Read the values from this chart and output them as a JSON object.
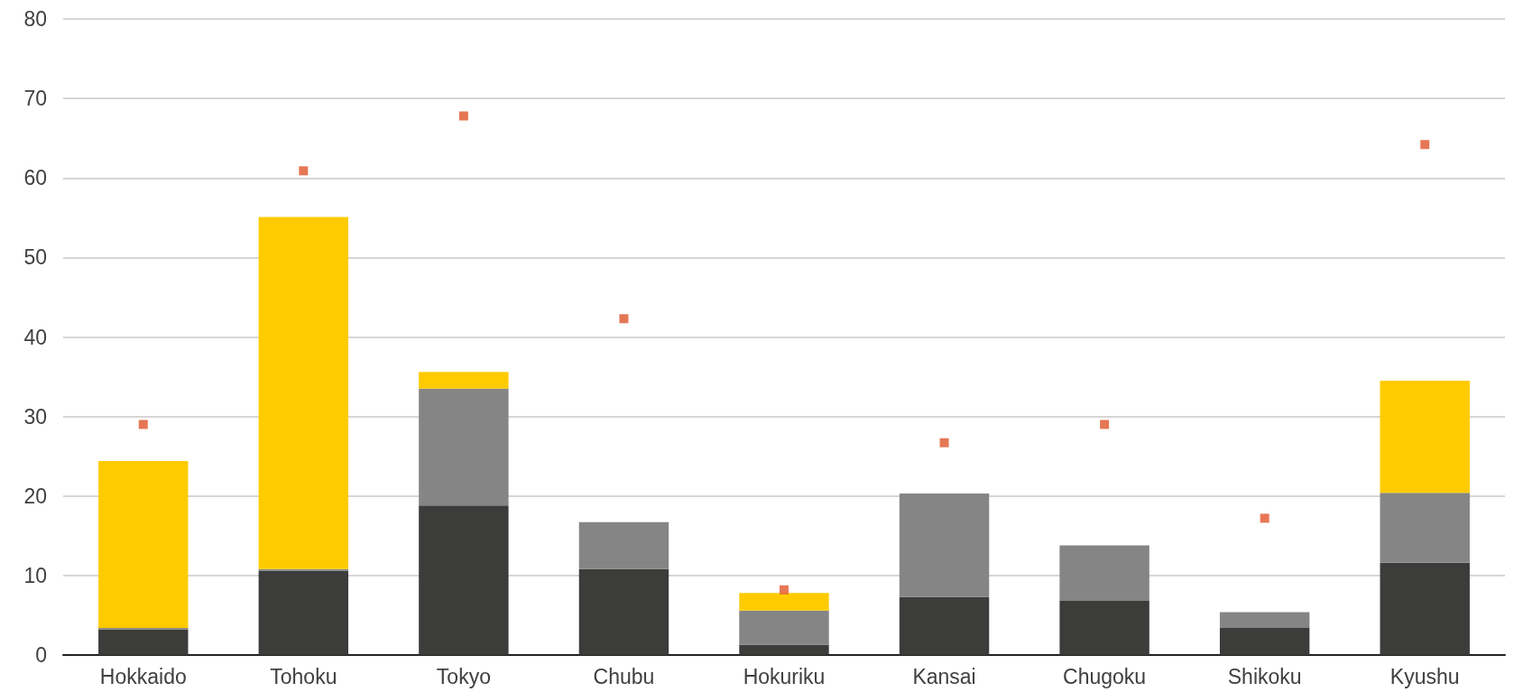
{
  "chart_data": {
    "type": "bar",
    "stacked": true,
    "categories": [
      "Hokkaido",
      "Tohoku",
      "Tokyo",
      "Chubu",
      "Hokuriku",
      "Kansai",
      "Chugoku",
      "Shikoku",
      "Kyushu"
    ],
    "series": [
      {
        "color": "#3c3c3a",
        "values": [
          3.2,
          10.6,
          18.8,
          10.8,
          1.3,
          7.3,
          6.8,
          3.4,
          11.6
        ]
      },
      {
        "color": "#858585",
        "values": [
          0.2,
          0.2,
          14.7,
          5.9,
          4.3,
          13.0,
          7.0,
          2.0,
          8.8
        ]
      },
      {
        "color": "#fecb00",
        "values": [
          21.0,
          44.3,
          2.1,
          0,
          2.2,
          0,
          0,
          0,
          14.1
        ]
      },
      {
        "type": "scatter",
        "marker": "square",
        "color": "#e0552b",
        "x": [
          "Hokkaido",
          "Tohoku",
          "Tokyo",
          "Chubu",
          "Hokuriku",
          "Kansai",
          "Chugoku",
          "Shikoku",
          "Kyushu"
        ],
        "values": [
          29.0,
          60.9,
          67.8,
          42.3,
          8.2,
          26.7,
          29.0,
          17.2,
          64.2
        ]
      }
    ],
    "ylim": [
      0,
      80
    ],
    "yticks": [
      0,
      10,
      20,
      30,
      40,
      50,
      60,
      70,
      80
    ],
    "grid": "y"
  }
}
